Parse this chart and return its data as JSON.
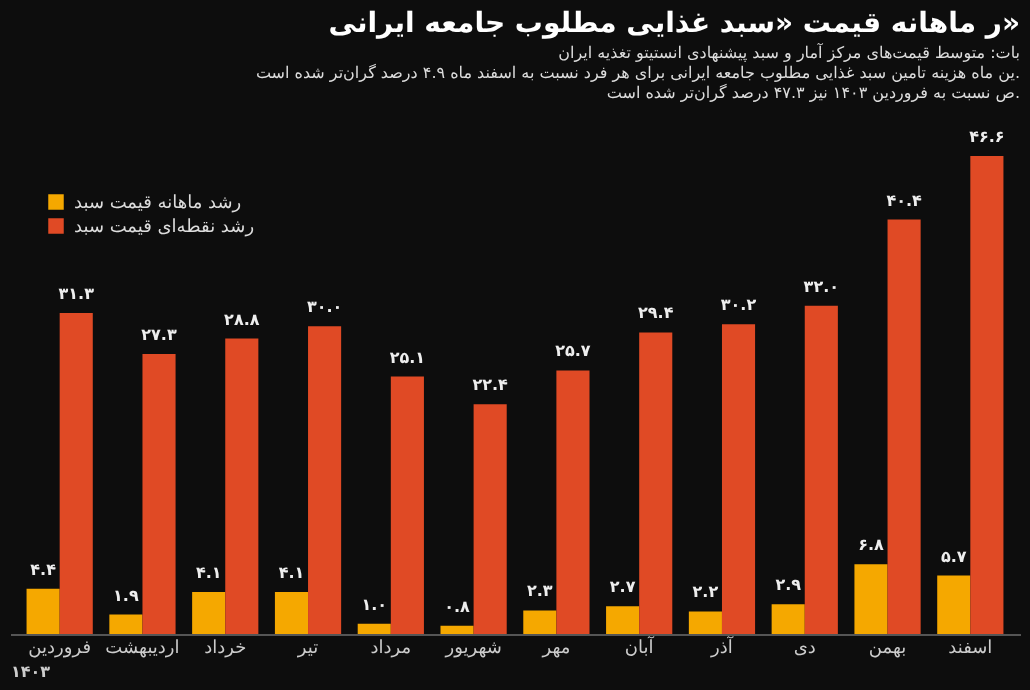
{
  "chart_data": {
    "type": "bar",
    "title": "ر ماهانه قیمت «سبد غذایی مطلوب جامعه ایرانی»",
    "subtitle": "بات: متوسط قیمت‌های مرکز آمار و سبد پیشنهادی انستیتو تغذیه ایران",
    "annotations": [
      "ین ماه هزینه تامین سبد غذایی مطلوب جامعه ایرانی برای هر فرد نسبت به اسفند ماه ۴.۹ درصد گران‌تر شده است.",
      "ص نسبت به فروردین ۱۴۰۳ نیز ۴۷.۳ درصد گران‌تر شده است."
    ],
    "xlabel": "۱۴۰۳",
    "categories": [
      "فروردین",
      "اردیبهشت",
      "خرداد",
      "تیر",
      "مرداد",
      "شهریور",
      "مهر",
      "آبان",
      "آذر",
      "دی",
      "بهمن",
      "اسفند"
    ],
    "series": [
      {
        "name": "رشد ماهانه قیمت سبد",
        "color": "#f5a800",
        "values": [
          4.4,
          1.9,
          4.1,
          4.1,
          1.0,
          0.8,
          2.3,
          2.7,
          2.2,
          2.9,
          6.8,
          5.7
        ],
        "value_labels": [
          "۴.۴",
          "۱.۹",
          "۴.۱",
          "۴.۱",
          "۱.۰",
          "۰.۸",
          "۲.۳",
          "۲.۷",
          "۲.۲",
          "۲.۹",
          "۶.۸",
          "۵.۷"
        ]
      },
      {
        "name": "رشد نقطه‌ای قیمت سبد",
        "color": "#e04a25",
        "values": [
          31.3,
          27.3,
          28.8,
          30.0,
          25.1,
          22.4,
          25.7,
          29.4,
          30.2,
          32.0,
          40.4,
          46.6
        ],
        "value_labels": [
          "۳۱.۳",
          "۲۷.۳",
          "۲۸.۸",
          "۳۰.۰",
          "۲۵.۱",
          "۲۲.۴",
          "۲۵.۷",
          "۲۹.۴",
          "۳۰.۲",
          "۳۲.۰",
          "۴۰.۴",
          "۴۶.۶"
        ]
      }
    ],
    "legend": "top left",
    "grid": false
  }
}
